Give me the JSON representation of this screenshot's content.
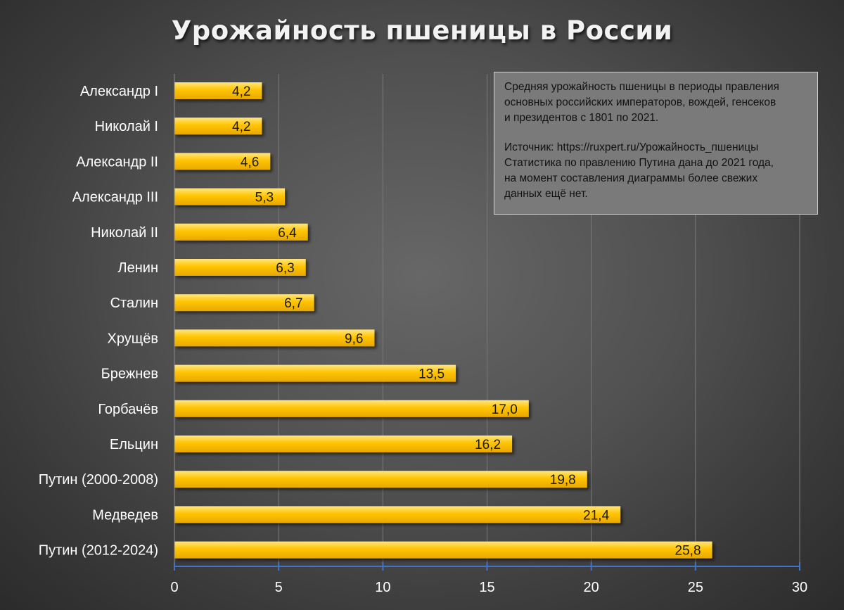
{
  "chart_data": {
    "type": "bar",
    "orientation": "horizontal",
    "title": "Урожайность пшеницы в России",
    "categories": [
      "Александр I",
      "Николай I",
      "Александр II",
      "Александр III",
      "Николай II",
      "Ленин",
      "Сталин",
      "Хрущёв",
      "Брежнев",
      "Горбачёв",
      "Ельцин",
      "Путин (2000-2008)",
      "Медведев",
      "Путин (2012-2024)"
    ],
    "values": [
      4.2,
      4.2,
      4.6,
      5.3,
      6.4,
      6.3,
      6.7,
      9.6,
      13.5,
      17.0,
      16.2,
      19.8,
      21.4,
      25.8
    ],
    "value_labels": [
      "4,2",
      "4,2",
      "4,6",
      "5,3",
      "6,4",
      "6,3",
      "6,7",
      "9,6",
      "13,5",
      "17,0",
      "16,2",
      "19,8",
      "21,4",
      "25,8"
    ],
    "xlim": [
      0,
      30
    ],
    "xticks": [
      0,
      5,
      10,
      15,
      20,
      25,
      30
    ],
    "xlabel": "",
    "ylabel": "",
    "grid": true,
    "legend": "none",
    "colors": {
      "bar": "#ffc000",
      "bar_highlight": "#ffe066",
      "background": "#4a4a4a",
      "gridline": "#7a7a7a",
      "axis": "#4472c4",
      "label": "#ffffff",
      "data_label": "#1a1a1a"
    }
  },
  "note": {
    "lines": [
      "Средняя урожайность пшеницы в периоды правления",
      "основных российских императоров, вождей, генсеков",
      "и президентов с 1801 по 2021."
    ],
    "source_lines": [
      "Источник: https://ruxpert.ru/Урожайность_пшеницы",
      "Статистика по правлению Путина дана до 2021 года,",
      "на момент составления диаграммы более свежих",
      "данных ещё нет."
    ]
  }
}
